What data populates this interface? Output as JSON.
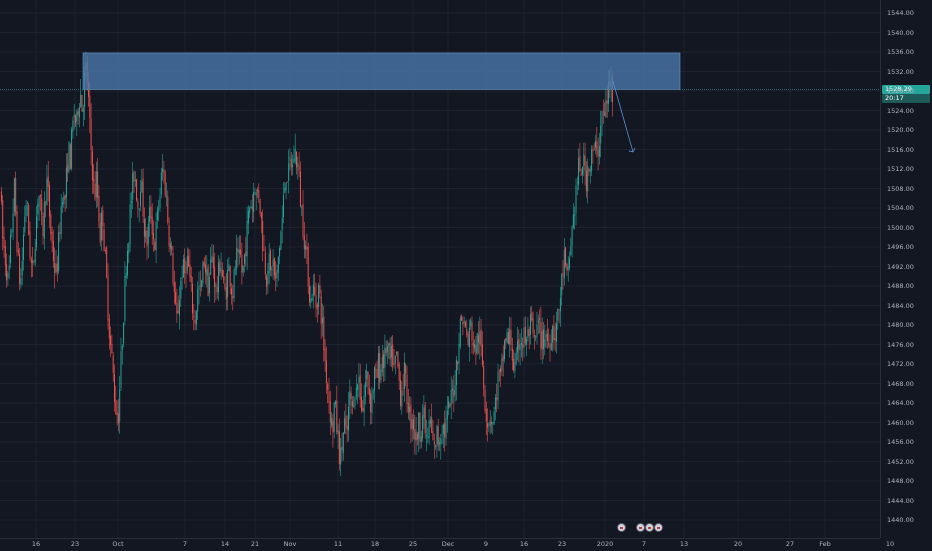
{
  "chart_data": {
    "type": "candlestick",
    "ylim": [
      1436,
      1548
    ],
    "y_ticks": [
      "1544.00",
      "1540.00",
      "1536.00",
      "1532.00",
      "1528.00",
      "1524.00",
      "1520.00",
      "1516.00",
      "1512.00",
      "1508.00",
      "1504.00",
      "1500.00",
      "1496.00",
      "1492.00",
      "1488.00",
      "1484.00",
      "1480.00",
      "1476.00",
      "1472.00",
      "1468.00",
      "1464.00",
      "1460.00",
      "1456.00",
      "1452.00",
      "1448.00",
      "1444.00",
      "1440.00"
    ],
    "x_ticks": [
      "16",
      "23",
      "Oct",
      "7",
      "14",
      "21",
      "Nov",
      "11",
      "18",
      "25",
      "Dec",
      "9",
      "16",
      "23",
      "2020",
      "7",
      "13",
      "20",
      "27",
      "Feb",
      "10"
    ],
    "last_price": "1528.29",
    "countdown": "20:17",
    "colors": {
      "up": "#26a69a",
      "down": "#ef5350",
      "zone": "#4a79ad",
      "grid": "#1e222d",
      "last_price": "#26a69a"
    },
    "annotation_zone": {
      "price_low": 1528.3,
      "price_high": 1535.8
    },
    "annotation_arrow": {
      "direction": "down",
      "from_price": 1530.0,
      "to_price": 1515.5
    },
    "price_path": [
      [
        0,
        1508
      ],
      [
        2,
        1498
      ],
      [
        4,
        1495
      ],
      [
        6,
        1492
      ],
      [
        8,
        1488
      ],
      [
        10,
        1496
      ],
      [
        12,
        1502
      ],
      [
        14,
        1508
      ],
      [
        16,
        1500
      ],
      [
        18,
        1492
      ],
      [
        20,
        1488
      ],
      [
        22,
        1494
      ],
      [
        24,
        1502
      ],
      [
        26,
        1506
      ],
      [
        28,
        1500
      ],
      [
        30,
        1494
      ],
      [
        32,
        1490
      ],
      [
        34,
        1496
      ],
      [
        36,
        1502
      ],
      [
        38,
        1508
      ],
      [
        40,
        1504
      ],
      [
        42,
        1498
      ],
      [
        44,
        1504
      ],
      [
        46,
        1510
      ],
      [
        48,
        1506
      ],
      [
        50,
        1500
      ],
      [
        52,
        1496
      ],
      [
        54,
        1492
      ],
      [
        56,
        1490
      ],
      [
        58,
        1496
      ],
      [
        60,
        1502
      ],
      [
        62,
        1508
      ],
      [
        64,
        1504
      ],
      [
        66,
        1510
      ],
      [
        68,
        1516
      ],
      [
        70,
        1514
      ],
      [
        72,
        1520
      ],
      [
        74,
        1524
      ],
      [
        76,
        1520
      ],
      [
        78,
        1526
      ],
      [
        80,
        1528
      ],
      [
        82,
        1524
      ],
      [
        84,
        1530
      ],
      [
        86,
        1533
      ],
      [
        88,
        1526
      ],
      [
        90,
        1518
      ],
      [
        92,
        1512
      ],
      [
        94,
        1506
      ],
      [
        96,
        1510
      ],
      [
        98,
        1504
      ],
      [
        100,
        1498
      ],
      [
        102,
        1504
      ],
      [
        104,
        1496
      ],
      [
        106,
        1490
      ],
      [
        108,
        1482
      ],
      [
        110,
        1476
      ],
      [
        112,
        1472
      ],
      [
        114,
        1466
      ],
      [
        116,
        1462
      ],
      [
        118,
        1462
      ],
      [
        120,
        1470
      ],
      [
        122,
        1478
      ],
      [
        124,
        1486
      ],
      [
        126,
        1494
      ],
      [
        128,
        1498
      ],
      [
        130,
        1504
      ],
      [
        132,
        1508
      ],
      [
        134,
        1512
      ],
      [
        136,
        1508
      ],
      [
        138,
        1504
      ],
      [
        140,
        1510
      ],
      [
        142,
        1506
      ],
      [
        144,
        1500
      ],
      [
        146,
        1496
      ],
      [
        148,
        1500
      ],
      [
        150,
        1504
      ],
      [
        152,
        1500
      ],
      [
        154,
        1496
      ],
      [
        156,
        1500
      ],
      [
        158,
        1504
      ],
      [
        160,
        1508
      ],
      [
        162,
        1512
      ],
      [
        164,
        1510
      ],
      [
        166,
        1506
      ],
      [
        168,
        1500
      ],
      [
        170,
        1496
      ],
      [
        172,
        1492
      ],
      [
        174,
        1486
      ],
      [
        176,
        1480
      ],
      [
        178,
        1484
      ],
      [
        180,
        1488
      ],
      [
        182,
        1492
      ],
      [
        184,
        1490
      ],
      [
        186,
        1494
      ],
      [
        188,
        1492
      ],
      [
        190,
        1488
      ],
      [
        192,
        1484
      ],
      [
        194,
        1480
      ],
      [
        196,
        1484
      ],
      [
        198,
        1488
      ],
      [
        200,
        1486
      ],
      [
        202,
        1490
      ],
      [
        204,
        1494
      ],
      [
        206,
        1490
      ],
      [
        208,
        1488
      ],
      [
        210,
        1492
      ],
      [
        212,
        1494
      ],
      [
        214,
        1490
      ],
      [
        216,
        1486
      ],
      [
        218,
        1490
      ],
      [
        220,
        1494
      ],
      [
        222,
        1490
      ],
      [
        224,
        1486
      ],
      [
        226,
        1488
      ],
      [
        228,
        1492
      ],
      [
        230,
        1490
      ],
      [
        232,
        1486
      ],
      [
        234,
        1490
      ],
      [
        236,
        1494
      ],
      [
        238,
        1492
      ],
      [
        240,
        1494
      ],
      [
        242,
        1490
      ],
      [
        244,
        1494
      ],
      [
        246,
        1498
      ],
      [
        248,
        1502
      ],
      [
        250,
        1506
      ],
      [
        252,
        1504
      ],
      [
        254,
        1510
      ],
      [
        256,
        1506
      ],
      [
        258,
        1508
      ],
      [
        260,
        1504
      ],
      [
        262,
        1498
      ],
      [
        264,
        1494
      ],
      [
        266,
        1490
      ],
      [
        268,
        1494
      ],
      [
        270,
        1490
      ],
      [
        272,
        1494
      ],
      [
        274,
        1490
      ],
      [
        276,
        1488
      ],
      [
        278,
        1494
      ],
      [
        280,
        1498
      ],
      [
        282,
        1502
      ],
      [
        284,
        1508
      ],
      [
        286,
        1512
      ],
      [
        288,
        1510
      ],
      [
        290,
        1514
      ],
      [
        292,
        1512
      ],
      [
        294,
        1516
      ],
      [
        296,
        1514
      ],
      [
        298,
        1512
      ],
      [
        300,
        1506
      ],
      [
        302,
        1502
      ],
      [
        304,
        1498
      ],
      [
        306,
        1494
      ],
      [
        308,
        1490
      ],
      [
        310,
        1484
      ],
      [
        312,
        1488
      ],
      [
        314,
        1486
      ],
      [
        316,
        1484
      ],
      [
        318,
        1488
      ],
      [
        320,
        1484
      ],
      [
        322,
        1480
      ],
      [
        324,
        1474
      ],
      [
        326,
        1470
      ],
      [
        328,
        1466
      ],
      [
        330,
        1462
      ],
      [
        332,
        1458
      ],
      [
        334,
        1464
      ],
      [
        336,
        1460
      ],
      [
        338,
        1456
      ],
      [
        340,
        1452
      ],
      [
        342,
        1456
      ],
      [
        344,
        1460
      ],
      [
        346,
        1456
      ],
      [
        348,
        1462
      ],
      [
        350,
        1466
      ],
      [
        352,
        1462
      ],
      [
        354,
        1468
      ],
      [
        356,
        1466
      ],
      [
        358,
        1470
      ],
      [
        360,
        1466
      ],
      [
        362,
        1462
      ],
      [
        364,
        1466
      ],
      [
        366,
        1470
      ],
      [
        368,
        1468
      ],
      [
        370,
        1464
      ],
      [
        372,
        1466
      ],
      [
        374,
        1470
      ],
      [
        376,
        1468
      ],
      [
        378,
        1472
      ],
      [
        380,
        1470
      ],
      [
        382,
        1474
      ],
      [
        384,
        1472
      ],
      [
        386,
        1476
      ],
      [
        388,
        1474
      ],
      [
        390,
        1472
      ],
      [
        392,
        1474
      ],
      [
        394,
        1470
      ],
      [
        396,
        1474
      ],
      [
        398,
        1470
      ],
      [
        400,
        1466
      ],
      [
        402,
        1468
      ],
      [
        404,
        1470
      ],
      [
        406,
        1466
      ],
      [
        408,
        1464
      ],
      [
        410,
        1460
      ],
      [
        412,
        1462
      ],
      [
        414,
        1458
      ],
      [
        416,
        1456
      ],
      [
        418,
        1460
      ],
      [
        420,
        1458
      ],
      [
        422,
        1462
      ],
      [
        424,
        1460
      ],
      [
        426,
        1456
      ],
      [
        428,
        1458
      ],
      [
        430,
        1460
      ],
      [
        432,
        1456
      ],
      [
        434,
        1454
      ],
      [
        436,
        1458
      ],
      [
        438,
        1456
      ],
      [
        440,
        1458
      ],
      [
        442,
        1460
      ],
      [
        444,
        1458
      ],
      [
        446,
        1460
      ],
      [
        448,
        1462
      ],
      [
        450,
        1464
      ],
      [
        452,
        1466
      ],
      [
        454,
        1468
      ],
      [
        456,
        1472
      ],
      [
        458,
        1476
      ],
      [
        460,
        1480
      ],
      [
        462,
        1482
      ],
      [
        464,
        1480
      ],
      [
        466,
        1478
      ],
      [
        468,
        1476
      ],
      [
        470,
        1480
      ],
      [
        472,
        1478
      ],
      [
        474,
        1474
      ],
      [
        476,
        1476
      ],
      [
        478,
        1478
      ],
      [
        480,
        1476
      ],
      [
        482,
        1472
      ],
      [
        484,
        1466
      ],
      [
        486,
        1462
      ],
      [
        488,
        1460
      ],
      [
        490,
        1462
      ],
      [
        492,
        1460
      ],
      [
        494,
        1462
      ],
      [
        496,
        1466
      ],
      [
        498,
        1470
      ],
      [
        500,
        1468
      ],
      [
        502,
        1472
      ],
      [
        504,
        1476
      ],
      [
        506,
        1478
      ],
      [
        508,
        1476
      ],
      [
        510,
        1478
      ],
      [
        512,
        1474
      ],
      [
        514,
        1470
      ],
      [
        516,
        1472
      ],
      [
        518,
        1476
      ],
      [
        520,
        1478
      ],
      [
        522,
        1476
      ],
      [
        524,
        1478
      ],
      [
        526,
        1476
      ],
      [
        528,
        1478
      ],
      [
        530,
        1480
      ],
      [
        532,
        1478
      ],
      [
        534,
        1476
      ],
      [
        536,
        1478
      ],
      [
        538,
        1480
      ],
      [
        540,
        1478
      ],
      [
        542,
        1476
      ],
      [
        544,
        1478
      ],
      [
        546,
        1478
      ],
      [
        548,
        1476
      ],
      [
        550,
        1478
      ],
      [
        552,
        1480
      ],
      [
        554,
        1478
      ],
      [
        556,
        1480
      ],
      [
        558,
        1482
      ],
      [
        560,
        1486
      ],
      [
        562,
        1490
      ],
      [
        564,
        1494
      ],
      [
        566,
        1488
      ],
      [
        568,
        1492
      ],
      [
        570,
        1496
      ],
      [
        572,
        1500
      ],
      [
        574,
        1504
      ],
      [
        576,
        1508
      ],
      [
        578,
        1512
      ],
      [
        580,
        1510
      ],
      [
        582,
        1514
      ],
      [
        584,
        1512
      ],
      [
        586,
        1510
      ],
      [
        588,
        1514
      ],
      [
        590,
        1512
      ],
      [
        592,
        1516
      ],
      [
        594,
        1514
      ],
      [
        596,
        1518
      ],
      [
        598,
        1516
      ],
      [
        600,
        1520
      ],
      [
        602,
        1524
      ],
      [
        604,
        1522
      ],
      [
        606,
        1526
      ],
      [
        608,
        1528
      ],
      [
        610,
        1530
      ],
      [
        612,
        1528
      ]
    ]
  }
}
